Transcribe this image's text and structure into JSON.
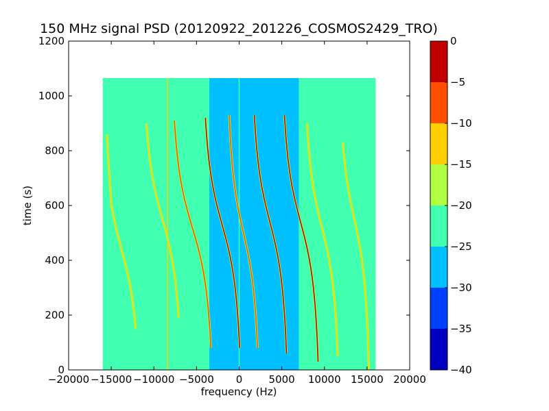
{
  "chart_data": {
    "type": "heatmap",
    "title": "150 MHz signal PSD (20120922_201226_COSMOS2429_TRO)",
    "xlabel": "frequency (Hz)",
    "ylabel": "time (s)",
    "xlim": [
      -20000,
      20000
    ],
    "ylim": [
      0,
      1200
    ],
    "x_ticks": [
      -20000,
      -15000,
      -10000,
      -5000,
      0,
      5000,
      10000,
      15000,
      20000
    ],
    "y_ticks": [
      0,
      200,
      400,
      600,
      800,
      1000,
      1200
    ],
    "x_tick_labels": [
      "−20000",
      "−15000",
      "−10000",
      "−5000",
      "0",
      "5000",
      "10000",
      "15000",
      "20000"
    ],
    "y_tick_labels": [
      "0",
      "200",
      "400",
      "600",
      "800",
      "1000",
      "1200"
    ],
    "grid": false,
    "data_extent": {
      "freq_range_hz": [
        -16000,
        16000
      ],
      "time_range_s": [
        0,
        1065
      ]
    },
    "background_regions": [
      {
        "freq_range_hz": [
          -16000,
          -3500
        ],
        "level_db": -22.5
      },
      {
        "freq_range_hz": [
          -3500,
          7000
        ],
        "level_db": -27.5
      },
      {
        "freq_range_hz": [
          7000,
          16000
        ],
        "level_db": -22.5
      }
    ],
    "traces": [
      {
        "center_hz": -13800,
        "center_time_s": 440,
        "spread_hz": 2700,
        "time_range_s": [
          150,
          600
        ],
        "peak_db": -15
      },
      {
        "center_hz": -15200,
        "center_time_s": 700,
        "spread_hz": 700,
        "time_range_s": [
          590,
          860
        ],
        "peak_db": -15
      },
      {
        "center_hz": -9000,
        "center_time_s": 550,
        "spread_hz": 2800,
        "time_range_s": [
          190,
          900
        ],
        "peak_db": -15
      },
      {
        "center_hz": -5500,
        "center_time_s": 520,
        "spread_hz": 3000,
        "time_range_s": [
          80,
          910
        ],
        "peak_db": -10
      },
      {
        "center_hz": -2000,
        "center_time_s": 530,
        "spread_hz": 2800,
        "time_range_s": [
          80,
          920
        ],
        "peak_db": -3
      },
      {
        "center_hz": 500,
        "center_time_s": 500,
        "spread_hz": 2300,
        "time_range_s": [
          80,
          930
        ],
        "peak_db": -10
      },
      {
        "center_hz": 3600,
        "center_time_s": 540,
        "spread_hz": 2600,
        "time_range_s": [
          60,
          930
        ],
        "peak_db": -3
      },
      {
        "center_hz": 7200,
        "center_time_s": 540,
        "spread_hz": 2700,
        "time_range_s": [
          30,
          930
        ],
        "peak_db": -3
      },
      {
        "center_hz": 9700,
        "center_time_s": 520,
        "spread_hz": 2500,
        "time_range_s": [
          50,
          900
        ],
        "peak_db": -15
      },
      {
        "center_hz": 13500,
        "center_time_s": 550,
        "spread_hz": 2200,
        "time_range_s": [
          0,
          830
        ],
        "peak_db": -15
      }
    ],
    "vertical_lines": [
      {
        "freq_hz": -8400,
        "level_db": -15
      },
      {
        "freq_hz": 0,
        "level_db": -25
      }
    ],
    "colorbar": {
      "min": -40,
      "max": 0,
      "ticks": [
        0,
        -5,
        -10,
        -15,
        -20,
        -25,
        -30,
        -35,
        -40
      ],
      "tick_labels": [
        "0",
        "−5",
        "−10",
        "−15",
        "−20",
        "−25",
        "−30",
        "−35",
        "−40"
      ],
      "colors": [
        "#0000c0",
        "#0040ff",
        "#00c0ff",
        "#40ffb0",
        "#b0ff40",
        "#ffd000",
        "#ff5000",
        "#c00000"
      ]
    }
  }
}
